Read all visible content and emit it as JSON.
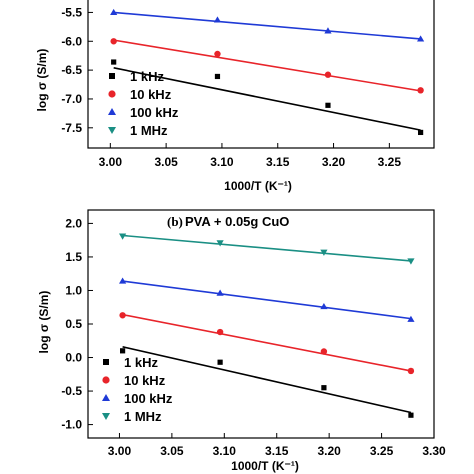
{
  "chart_data": [
    {
      "type": "scatter",
      "panel_label": "",
      "title": "",
      "xlabel": "1000/T (K⁻¹)",
      "ylabel": "log σ (S/m)",
      "xlim": [
        2.98,
        3.29
      ],
      "ylim": [
        -7.85,
        -5.25
      ],
      "xticks": [
        3.0,
        3.05,
        3.1,
        3.15,
        3.2,
        3.25
      ],
      "xtick_labels": [
        "3.00",
        "3.05",
        "3.10",
        "3.15",
        "3.20",
        "3.25"
      ],
      "yticks": [
        -5.5,
        -6.0,
        -6.5,
        -7.0,
        -7.5
      ],
      "ytick_labels": [
        "-5.5",
        "-6.0",
        "-6.5",
        "-7.0",
        "-7.5"
      ],
      "legend_position": "bottom-left",
      "grid": false,
      "series": [
        {
          "name": "1 kHz",
          "marker": "square",
          "color": "#000000",
          "x": [
            3.003,
            3.096,
            3.195,
            3.278
          ],
          "y": [
            -6.36,
            -6.61,
            -7.11,
            -7.58
          ],
          "fit": [
            [
              3.003,
              -6.46
            ],
            [
              3.278,
              -7.54
            ]
          ]
        },
        {
          "name": "10 kHz",
          "marker": "circle",
          "color": "#e8242a",
          "x": [
            3.003,
            3.096,
            3.195,
            3.278
          ],
          "y": [
            -6.0,
            -6.22,
            -6.58,
            -6.85
          ],
          "fit": [
            [
              3.003,
              -5.98
            ],
            [
              3.278,
              -6.86
            ]
          ]
        },
        {
          "name": "100 kHz",
          "marker": "triangle-up",
          "color": "#1f3ad6",
          "x": [
            3.003,
            3.096,
            3.195,
            3.278
          ],
          "y": [
            -5.5,
            -5.63,
            -5.82,
            -5.96
          ],
          "fit": [
            [
              3.003,
              -5.5
            ],
            [
              3.278,
              -5.96
            ]
          ]
        },
        {
          "name": "1 MHz",
          "marker": "triangle-down",
          "color": "#1a8f84",
          "x": [],
          "y": [],
          "fit": []
        }
      ]
    },
    {
      "type": "scatter",
      "panel_label": "(b)",
      "title": "PVA + 0.05g CuO",
      "xlabel": "1000/T (K⁻¹)",
      "ylabel": "log σ (S/m)",
      "xlim": [
        2.97,
        3.3
      ],
      "ylim": [
        -1.2,
        2.2
      ],
      "xticks": [
        3.0,
        3.05,
        3.1,
        3.15,
        3.2,
        3.25,
        3.3
      ],
      "xtick_labels": [
        "3.00",
        "3.05",
        "3.10",
        "3.15",
        "3.20",
        "3.25",
        "3.30"
      ],
      "yticks": [
        2.0,
        1.5,
        1.0,
        0.5,
        0.0,
        -0.5,
        -1.0
      ],
      "ytick_labels": [
        "2.0",
        "1.5",
        "1.0",
        "0.5",
        "0.0",
        "-0.5",
        "-1.0"
      ],
      "legend_position": "bottom-left",
      "grid": false,
      "series": [
        {
          "name": "1 kHz",
          "marker": "square",
          "color": "#000000",
          "x": [
            3.003,
            3.096,
            3.195,
            3.278
          ],
          "y": [
            0.1,
            -0.07,
            -0.45,
            -0.86
          ],
          "fit": [
            [
              3.003,
              0.16
            ],
            [
              3.278,
              -0.82
            ]
          ]
        },
        {
          "name": "10 kHz",
          "marker": "circle",
          "color": "#e8242a",
          "x": [
            3.003,
            3.096,
            3.195,
            3.278
          ],
          "y": [
            0.63,
            0.38,
            0.09,
            -0.2
          ],
          "fit": [
            [
              3.003,
              0.64
            ],
            [
              3.278,
              -0.2
            ]
          ]
        },
        {
          "name": "100 kHz",
          "marker": "triangle-up",
          "color": "#1f3ad6",
          "x": [
            3.003,
            3.096,
            3.195,
            3.278
          ],
          "y": [
            1.14,
            0.96,
            0.76,
            0.57
          ],
          "fit": [
            [
              3.003,
              1.14
            ],
            [
              3.278,
              0.58
            ]
          ]
        },
        {
          "name": "1 MHz",
          "marker": "triangle-down",
          "color": "#1a8f84",
          "x": [
            3.003,
            3.096,
            3.195,
            3.278
          ],
          "y": [
            1.81,
            1.71,
            1.57,
            1.44
          ],
          "fit": [
            [
              3.003,
              1.82
            ],
            [
              3.278,
              1.44
            ]
          ]
        }
      ]
    }
  ]
}
